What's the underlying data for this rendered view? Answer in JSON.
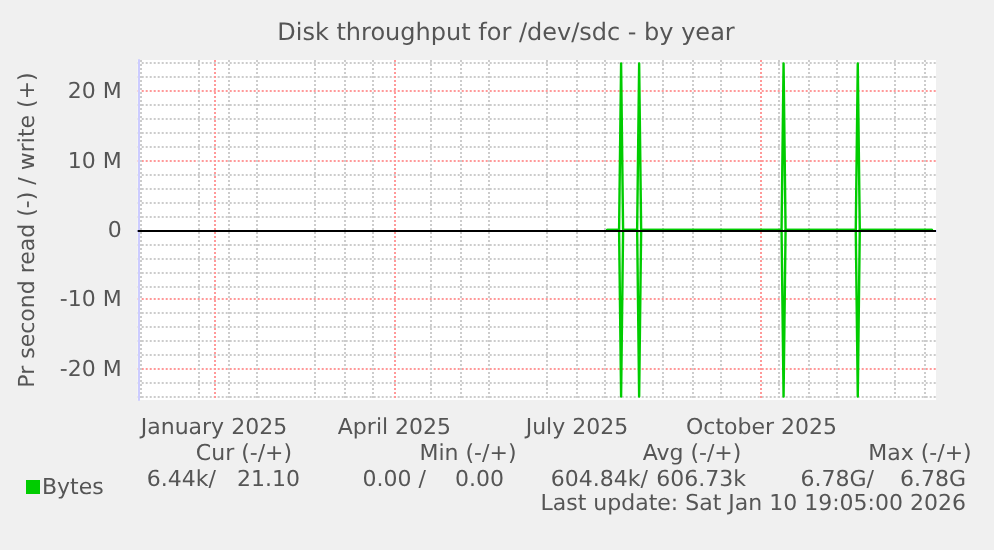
{
  "chart_data": {
    "type": "line",
    "title": "Disk throughput for /dev/sdc - by year",
    "ylabel": "Pr second read (-) / write (+)",
    "x": [
      "2025-07-30",
      "2025-08-05",
      "2025-08-06",
      "2025-08-07",
      "2025-08-14",
      "2025-08-15",
      "2025-08-16",
      "2025-10-25",
      "2025-10-26",
      "2025-10-27",
      "2025-12-01",
      "2025-12-02",
      "2025-12-03",
      "2026-01-08"
    ],
    "series": [
      {
        "name": "Bytes",
        "color": "#00cc00",
        "values": [
          0,
          0,
          24000000,
          0,
          0,
          24000000,
          0,
          0,
          24000000,
          0,
          0,
          24000000,
          0,
          0
        ]
      },
      {
        "color": "#00cc00",
        "values": [
          0,
          0,
          -24000000,
          0,
          0,
          -24000000,
          0,
          0,
          -24000000,
          0,
          0,
          -24000000,
          0,
          0
        ]
      }
    ],
    "xlim": [
      "2024-12-08",
      "2026-01-10"
    ],
    "xticks": [
      {
        "value": "2025-01-15",
        "label": "January 2025"
      },
      {
        "value": "2025-04-15",
        "label": "April 2025"
      },
      {
        "value": "2025-07-15",
        "label": "July 2025"
      },
      {
        "value": "2025-10-15",
        "label": "October 2025"
      }
    ],
    "ylim": [
      -24500000,
      24500000
    ],
    "yticks": [
      {
        "value": -20000000,
        "label": "-20 M"
      },
      {
        "value": -10000000,
        "label": "-10 M"
      },
      0,
      {
        "value": 10000000,
        "label": "10 M"
      },
      {
        "value": 20000000,
        "label": "20 M"
      }
    ],
    "ref_lines": [
      {
        "axis": "y",
        "value": 0,
        "color": "#000000"
      }
    ],
    "grid": true,
    "legend": "bottom left",
    "marker": "none",
    "line_style": "solid",
    "annotations": [
      "Cur (-/+)",
      "Min (-/+)",
      "Avg (-/+)",
      "Max (-/+)",
      "6.44k/",
      "21.10",
      "0.00 /",
      "0.00",
      "604.84k/",
      "606.73k",
      "6.78G/",
      "6.78G",
      "Last update: Sat Jan 10 19:05:00 2026"
    ]
  }
}
